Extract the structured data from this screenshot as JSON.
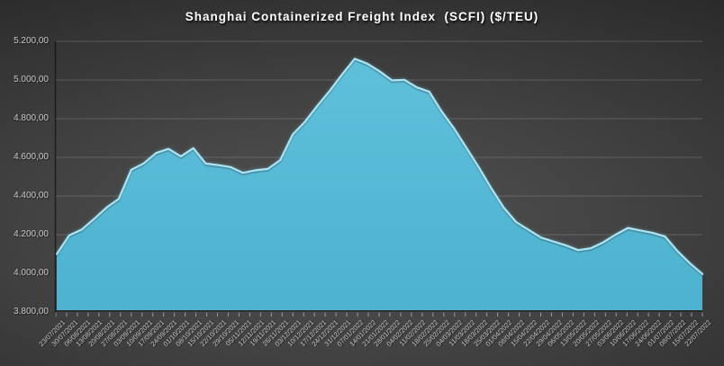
{
  "title": "Shanghai Containerized Freight Index  (SCFI) ($/TEU)",
  "chart_data": {
    "type": "area",
    "title": "Shanghai Containerized Freight Index  (SCFI) ($/TEU)",
    "xlabel": "",
    "ylabel": "",
    "ylim": [
      3800,
      5200
    ],
    "ytick_step": 200,
    "grid": "horizontal",
    "legend": "none",
    "y_axis_labels": [
      "5.200,00",
      "5.000,00",
      "4.800,00",
      "4.600,00",
      "4.400,00",
      "4.200,00",
      "4.000,00",
      "3.800,00"
    ],
    "x": [
      "23/07/2021",
      "30/07/2021",
      "06/08/2021",
      "13/08/2021",
      "20/08/2021",
      "27/08/2021",
      "03/09/2021",
      "10/09/2021",
      "17/09/2021",
      "24/09/2021",
      "01/10/2021",
      "08/10/2021",
      "15/10/2021",
      "22/10/2021",
      "29/10/2021",
      "05/11/2021",
      "12/11/2021",
      "19/11/2021",
      "26/11/2021",
      "03/12/2021",
      "10/12/2021",
      "17/12/2021",
      "24/12/2021",
      "31/12/2021",
      "07/01/2022",
      "14/01/2022",
      "21/01/2022",
      "28/01/2022",
      "04/02/2022",
      "11/02/2022",
      "18/02/2022",
      "25/02/2022",
      "04/03/2022",
      "11/03/2022",
      "18/03/2022",
      "25/03/2022",
      "01/04/2022",
      "08/04/2022",
      "15/04/2022",
      "22/04/2022",
      "29/04/2022",
      "06/05/2022",
      "13/05/2022",
      "20/05/2022",
      "27/05/2022",
      "03/06/2022",
      "10/06/2022",
      "17/06/2022",
      "24/06/2022",
      "01/07/2022",
      "08/07/2022",
      "15/07/2022",
      "22/07/2022"
    ],
    "series": [
      {
        "name": "SCFI",
        "values": [
          4100.1,
          4196.24,
          4225.86,
          4281.53,
          4340.18,
          4385.62,
          4535.92,
          4568.52,
          4622.51,
          4643.79,
          4605,
          4647.6,
          4568,
          4560,
          4550,
          4520,
          4533,
          4540,
          4586,
          4718,
          4785,
          4868,
          4945,
          5030,
          5109.6,
          5085,
          5045,
          4998,
          5001,
          4962,
          4940,
          4838,
          4750,
          4650,
          4548,
          4440,
          4340,
          4265,
          4225,
          4185,
          4165,
          4145,
          4120,
          4130,
          4160,
          4200,
          4235,
          4222,
          4210,
          4190,
          4115,
          4052,
          3996.77
        ]
      }
    ],
    "colors": {
      "area_fill_top": "#5fc0db",
      "area_fill_bottom": "#4db2cf",
      "line_highlight": "#a9e5f5",
      "line_glow": "#7ecbe0",
      "gridline": "#b4b4b4",
      "tick": "#b8b8b8",
      "axis_dark": "#151515",
      "label": "#c9c9c9",
      "title": "#ffffff"
    }
  }
}
